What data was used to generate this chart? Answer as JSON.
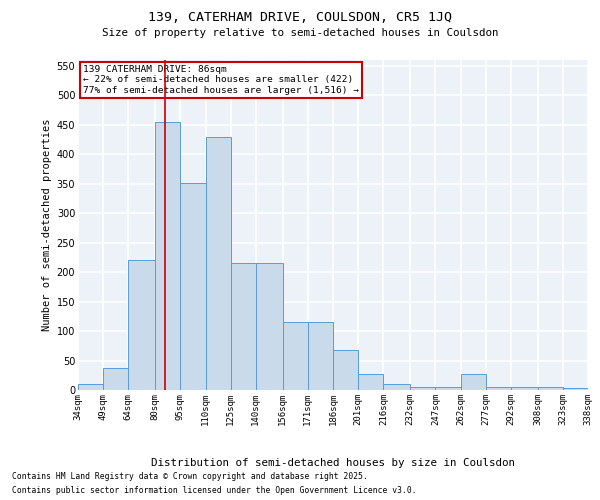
{
  "title1": "139, CATERHAM DRIVE, COULSDON, CR5 1JQ",
  "title2": "Size of property relative to semi-detached houses in Coulsdon",
  "xlabel": "Distribution of semi-detached houses by size in Coulsdon",
  "ylabel": "Number of semi-detached properties",
  "bins": [
    "34sqm",
    "49sqm",
    "64sqm",
    "80sqm",
    "95sqm",
    "110sqm",
    "125sqm",
    "140sqm",
    "156sqm",
    "171sqm",
    "186sqm",
    "201sqm",
    "216sqm",
    "232sqm",
    "247sqm",
    "262sqm",
    "277sqm",
    "292sqm",
    "308sqm",
    "323sqm",
    "338sqm"
  ],
  "bar_heights": [
    10,
    38,
    220,
    455,
    352,
    430,
    215,
    215,
    115,
    115,
    68,
    27,
    10,
    5,
    5,
    27,
    5,
    5,
    5,
    3
  ],
  "bar_color": "#c9daea",
  "bar_edge_color": "#5b9bd5",
  "property_line_x": 86,
  "bin_edges": [
    34,
    49,
    64,
    80,
    95,
    110,
    125,
    140,
    156,
    171,
    186,
    201,
    216,
    232,
    247,
    262,
    277,
    292,
    308,
    323,
    338
  ],
  "annotation_title": "139 CATERHAM DRIVE: 86sqm",
  "annotation_line1": "← 22% of semi-detached houses are smaller (422)",
  "annotation_line2": "77% of semi-detached houses are larger (1,516) →",
  "annotation_box_color": "#ffffff",
  "annotation_box_edge": "#cc0000",
  "property_line_color": "#cc0000",
  "ylim": [
    0,
    560
  ],
  "yticks": [
    0,
    50,
    100,
    150,
    200,
    250,
    300,
    350,
    400,
    450,
    500,
    550
  ],
  "footer1": "Contains HM Land Registry data © Crown copyright and database right 2025.",
  "footer2": "Contains public sector information licensed under the Open Government Licence v3.0.",
  "bg_color": "#edf2f9",
  "grid_color": "#ffffff",
  "fig_bg": "#ffffff"
}
